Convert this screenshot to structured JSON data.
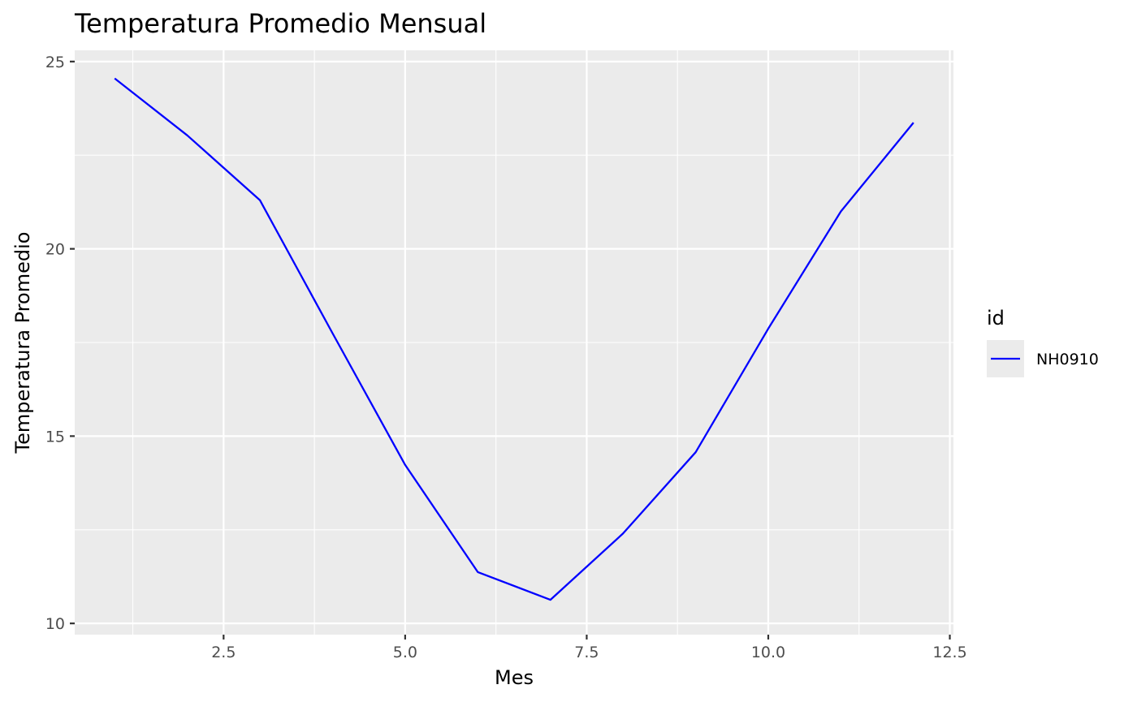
{
  "chart_data": {
    "type": "line",
    "title": "Temperatura Promedio Mensual",
    "xlabel": "Mes",
    "ylabel": "Temperatura Promedio",
    "xlim": [
      0.45,
      12.55
    ],
    "ylim": [
      9.7,
      25.3
    ],
    "x_ticks": [
      2.5,
      5.0,
      7.5,
      10.0,
      12.5
    ],
    "x_tick_labels": [
      "2.5",
      "5.0",
      "7.5",
      "10.0",
      "12.5"
    ],
    "x_minor_ticks": [
      1.25,
      3.75,
      6.25,
      8.75,
      11.25
    ],
    "y_ticks": [
      10,
      15,
      20,
      25
    ],
    "y_tick_labels": [
      "10",
      "15",
      "20",
      "25"
    ],
    "y_minor_ticks": [
      12.5,
      17.5,
      22.5
    ],
    "grid": true,
    "legend": {
      "title": "id",
      "position": "right"
    },
    "series": [
      {
        "name": "NH0910",
        "color": "#0000ff",
        "x": [
          1,
          2,
          3,
          4,
          5,
          6,
          7,
          8,
          9,
          10,
          11,
          12
        ],
        "y": [
          24.55,
          23.03,
          21.3,
          17.75,
          14.23,
          11.37,
          10.63,
          12.4,
          14.57,
          17.87,
          21.0,
          23.37
        ]
      }
    ]
  }
}
